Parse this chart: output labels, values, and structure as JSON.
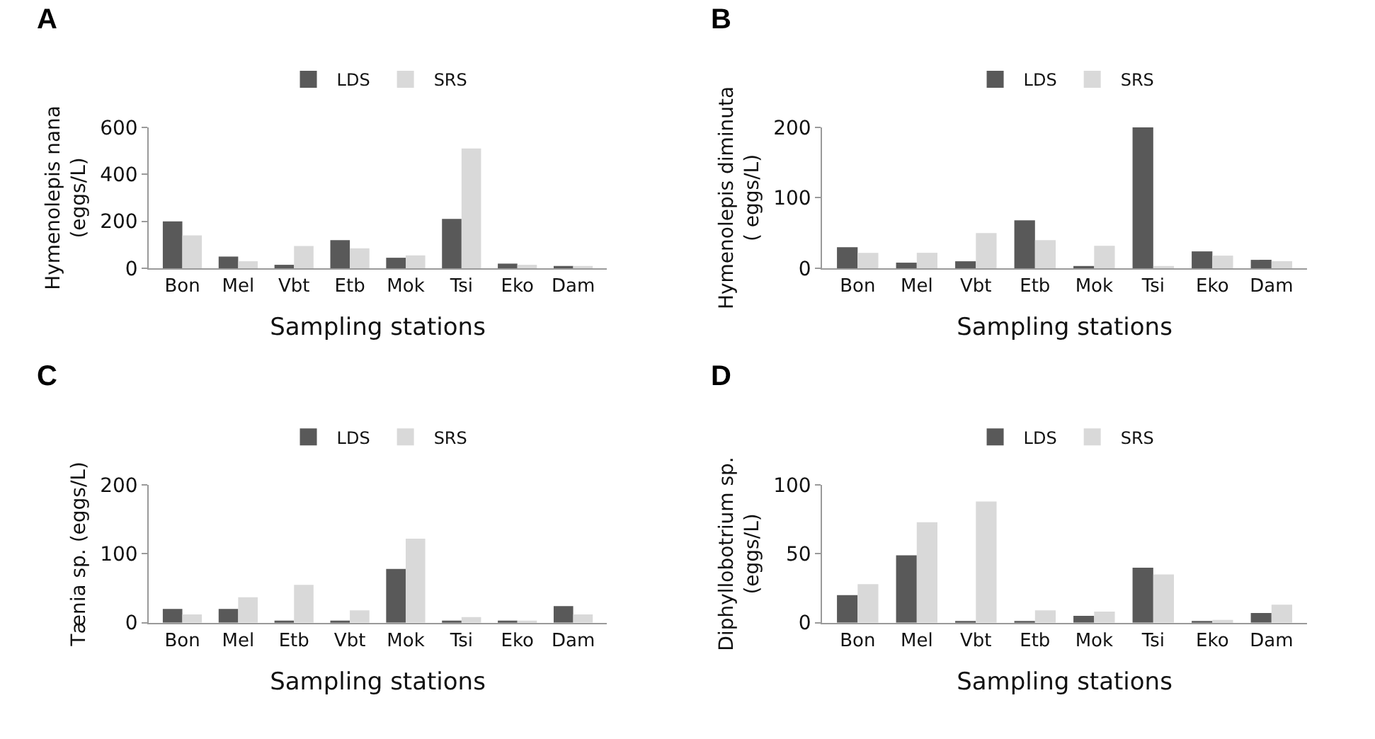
{
  "chart_data": [
    {
      "type": "bar",
      "title": "A",
      "xlabel": "Sampling stations",
      "ylabel": "Hymenolepis nana\n(eggs/L)",
      "categories": [
        "Bon",
        "Mel",
        "Vbt",
        "Etb",
        "Mok",
        "Tsi",
        "Eko",
        "Dam"
      ],
      "ylim": [
        0,
        600
      ],
      "yticks": [
        0,
        200,
        400,
        600
      ],
      "legend": "top",
      "series": [
        {
          "name": "LDS",
          "color": "#595959",
          "values": [
            200,
            50,
            15,
            120,
            45,
            210,
            20,
            10
          ]
        },
        {
          "name": "SRS",
          "color": "#d9d9d9",
          "values": [
            140,
            30,
            95,
            85,
            55,
            510,
            15,
            10
          ]
        }
      ]
    },
    {
      "type": "bar",
      "title": "B",
      "xlabel": "Sampling stations",
      "ylabel": "Hymenolepis diminuta\n( eggs/L)",
      "categories": [
        "Bon",
        "Mel",
        "Vbt",
        "Etb",
        "Mok",
        "Tsi",
        "Eko",
        "Dam"
      ],
      "ylim": [
        0,
        200
      ],
      "yticks": [
        0,
        100,
        200
      ],
      "legend": "top",
      "series": [
        {
          "name": "LDS",
          "color": "#595959",
          "values": [
            30,
            8,
            10,
            68,
            3,
            200,
            24,
            12
          ]
        },
        {
          "name": "SRS",
          "color": "#d9d9d9",
          "values": [
            22,
            22,
            50,
            40,
            32,
            3,
            18,
            10
          ]
        }
      ]
    },
    {
      "type": "bar",
      "title": "C",
      "xlabel": "Sampling stations",
      "ylabel": "Tænia sp. (eggs/L)",
      "categories": [
        "Bon",
        "Mel",
        "Etb",
        "Vbt",
        "Mok",
        "Tsi",
        "Eko",
        "Dam"
      ],
      "ylim": [
        0,
        200
      ],
      "yticks": [
        0,
        100,
        200
      ],
      "legend": "top",
      "series": [
        {
          "name": "LDS",
          "color": "#595959",
          "values": [
            20,
            20,
            3,
            3,
            78,
            3,
            3,
            24
          ]
        },
        {
          "name": "SRS",
          "color": "#d9d9d9",
          "values": [
            12,
            37,
            55,
            18,
            122,
            8,
            3,
            12
          ]
        }
      ]
    },
    {
      "type": "bar",
      "title": "D",
      "xlabel": "Sampling stations",
      "ylabel": "Diphyllobotrium sp.\n(eggs/L)",
      "categories": [
        "Bon",
        "Mel",
        "Vbt",
        "Etb",
        "Mok",
        "Tsi",
        "Eko",
        "Dam"
      ],
      "ylim": [
        0,
        100
      ],
      "yticks": [
        0,
        50,
        100
      ],
      "legend": "top",
      "series": [
        {
          "name": "LDS",
          "color": "#595959",
          "values": [
            20,
            49,
            1,
            1,
            5,
            40,
            1,
            7
          ]
        },
        {
          "name": "SRS",
          "color": "#d9d9d9",
          "values": [
            28,
            73,
            88,
            9,
            8,
            35,
            2,
            13
          ]
        }
      ]
    }
  ]
}
